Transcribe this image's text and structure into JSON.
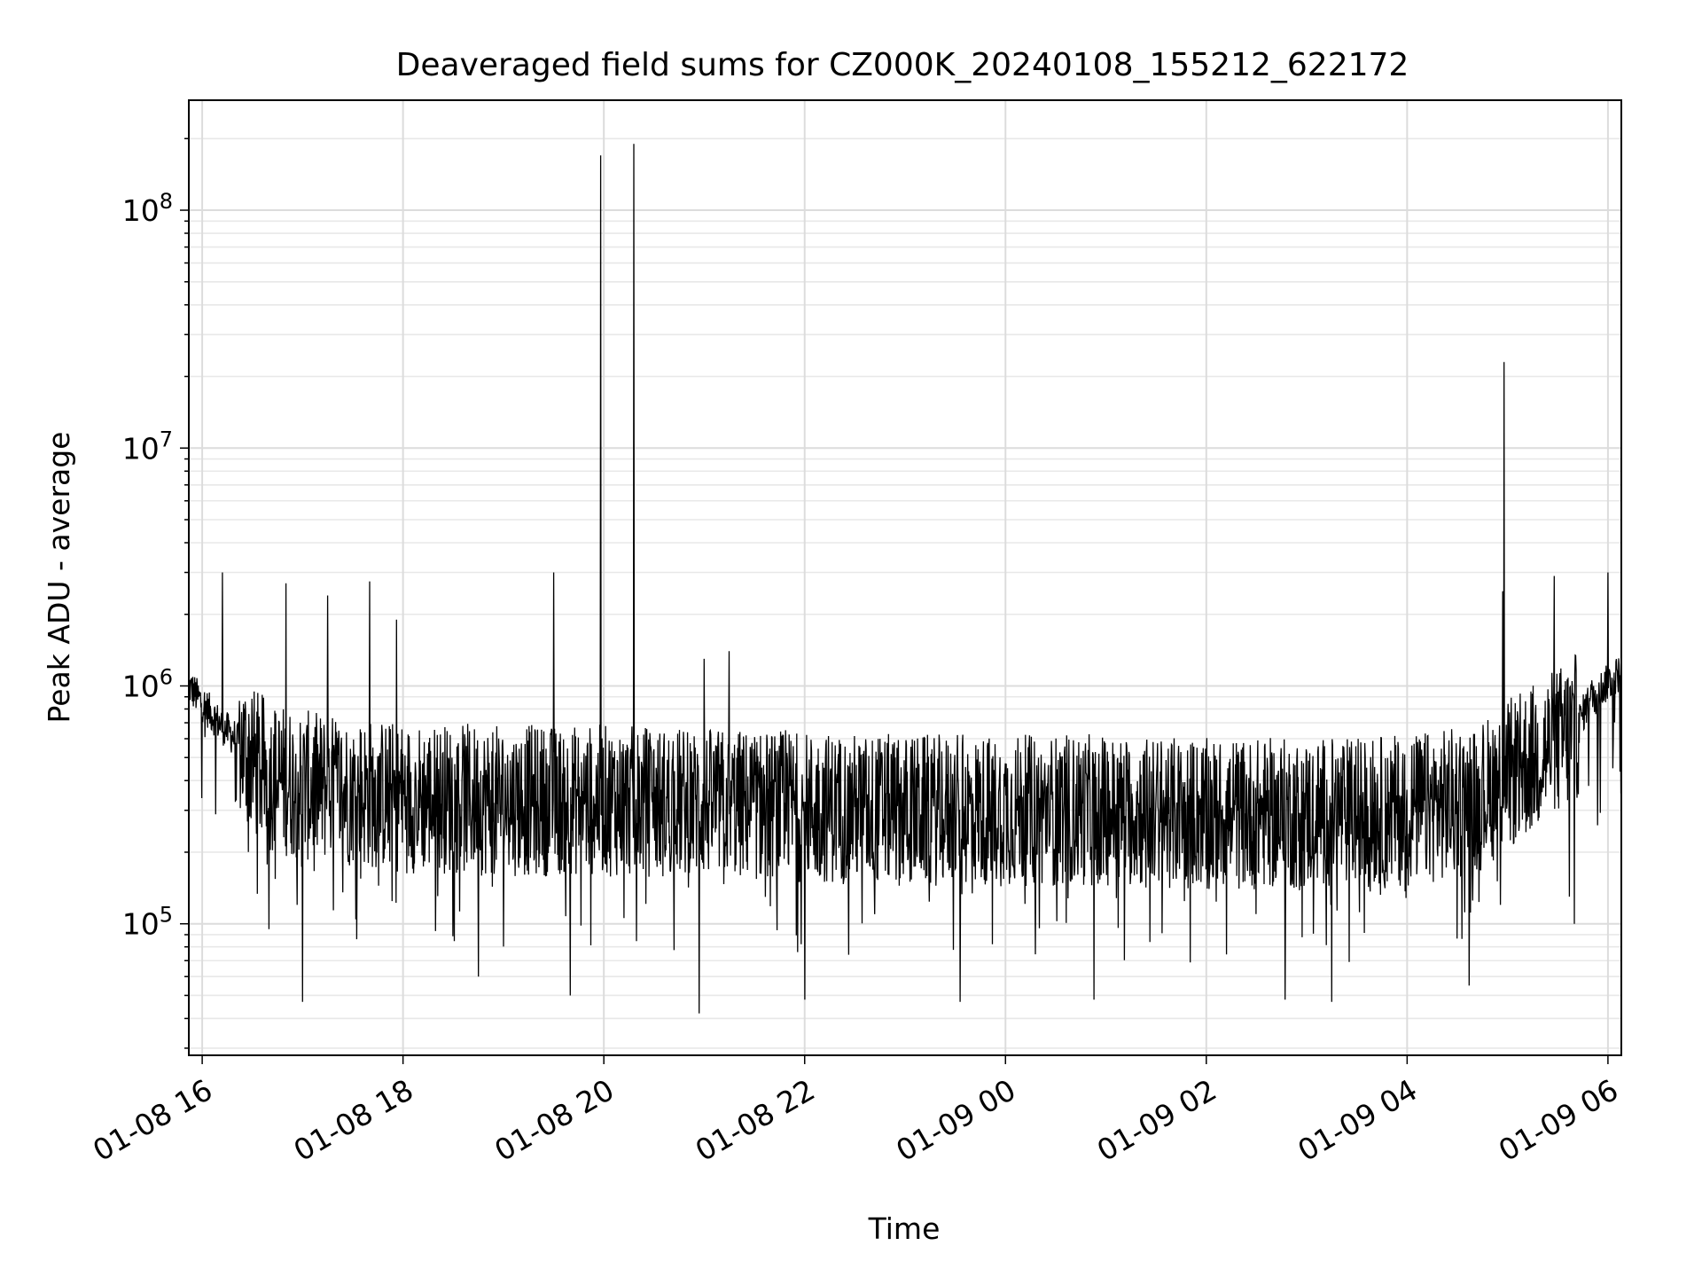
{
  "chart_data": {
    "type": "line",
    "title": "Deaveraged field sums for CZ000K_20240108_155212_622172",
    "xlabel": "Time",
    "ylabel": "Peak ADU - average",
    "yscale": "log",
    "ylim": [
      28000,
      290000000
    ],
    "xlim": [
      "2024-01-08 15:52",
      "2024-01-09 06:08"
    ],
    "grid": true,
    "line_color": "#000000",
    "x_ticks": [
      {
        "t": "2024-01-08 16:00",
        "label": "01-08 16"
      },
      {
        "t": "2024-01-08 18:00",
        "label": "01-08 18"
      },
      {
        "t": "2024-01-08 20:00",
        "label": "01-08 20"
      },
      {
        "t": "2024-01-08 22:00",
        "label": "01-08 22"
      },
      {
        "t": "2024-01-09 00:00",
        "label": "01-09 00"
      },
      {
        "t": "2024-01-09 02:00",
        "label": "01-09 02"
      },
      {
        "t": "2024-01-09 04:00",
        "label": "01-09 04"
      },
      {
        "t": "2024-01-09 06:00",
        "label": "01-09 06"
      }
    ],
    "y_ticks": [
      {
        "value": 100000,
        "base": "10",
        "exp": "5"
      },
      {
        "value": 1000000,
        "base": "10",
        "exp": "6"
      },
      {
        "value": 10000000,
        "base": "10",
        "exp": "7"
      },
      {
        "value": 100000000,
        "base": "10",
        "exp": "8"
      }
    ],
    "series": [
      {
        "x": [
          "2024-01-08 15:52",
          "2024-01-08 16:00",
          "2024-01-08 16:10",
          "2024-01-08 16:20",
          "2024-01-08 16:30",
          "2024-01-08 16:40",
          "2024-01-08 17:00",
          "2024-01-08 17:30",
          "2024-01-08 18:00",
          "2024-01-08 19:00",
          "2024-01-08 20:00",
          "2024-01-08 21:00",
          "2024-01-08 22:00",
          "2024-01-08 23:00",
          "2024-01-09 00:00",
          "2024-01-09 01:00",
          "2024-01-09 02:00",
          "2024-01-09 03:00",
          "2024-01-09 04:00",
          "2024-01-09 04:40",
          "2024-01-09 05:00",
          "2024-01-09 05:20",
          "2024-01-09 05:40",
          "2024-01-09 05:50",
          "2024-01-09 06:08"
        ],
        "y": [
          1000000,
          850000,
          700000,
          600000,
          480000,
          420000,
          380000,
          360000,
          340000,
          330000,
          330000,
          320000,
          310000,
          300000,
          300000,
          300000,
          290000,
          290000,
          300000,
          330000,
          420000,
          520000,
          650000,
          900000,
          1150000
        ]
      }
    ],
    "spikes": [
      {
        "x": "2024-01-08 19:58",
        "y": 170000000
      },
      {
        "x": "2024-01-08 20:18",
        "y": 190000000
      },
      {
        "x": "2024-01-09 04:58",
        "y": 23000000
      },
      {
        "x": "2024-01-08 19:30",
        "y": 3000000
      },
      {
        "x": "2024-01-08 16:12",
        "y": 3000000
      },
      {
        "x": "2024-01-09 05:28",
        "y": 2900000
      },
      {
        "x": "2024-01-09 06:00",
        "y": 3000000
      },
      {
        "x": "2024-01-08 17:40",
        "y": 2750000
      },
      {
        "x": "2024-01-08 16:50",
        "y": 2700000
      },
      {
        "x": "2024-01-08 17:15",
        "y": 2400000
      },
      {
        "x": "2024-01-09 04:57",
        "y": 2500000
      },
      {
        "x": "2024-01-08 17:56",
        "y": 1900000
      },
      {
        "x": "2024-01-08 21:00",
        "y": 1300000
      },
      {
        "x": "2024-01-08 21:15",
        "y": 1400000
      }
    ],
    "dips": [
      {
        "x": "2024-01-08 17:00",
        "y": 47000
      },
      {
        "x": "2024-01-08 20:57",
        "y": 42000
      },
      {
        "x": "2024-01-08 23:33",
        "y": 47000
      },
      {
        "x": "2024-01-09 00:53",
        "y": 48000
      },
      {
        "x": "2024-01-09 02:47",
        "y": 48000
      },
      {
        "x": "2024-01-09 03:15",
        "y": 47000
      },
      {
        "x": "2024-01-08 22:00",
        "y": 48000
      },
      {
        "x": "2024-01-08 19:40",
        "y": 50000
      },
      {
        "x": "2024-01-09 05:40",
        "y": 100000
      },
      {
        "x": "2024-01-09 05:37",
        "y": 130000
      },
      {
        "x": "2024-01-08 16:40",
        "y": 95000
      },
      {
        "x": "2024-01-08 18:45",
        "y": 60000
      },
      {
        "x": "2024-01-09 04:37",
        "y": 55000
      }
    ]
  }
}
